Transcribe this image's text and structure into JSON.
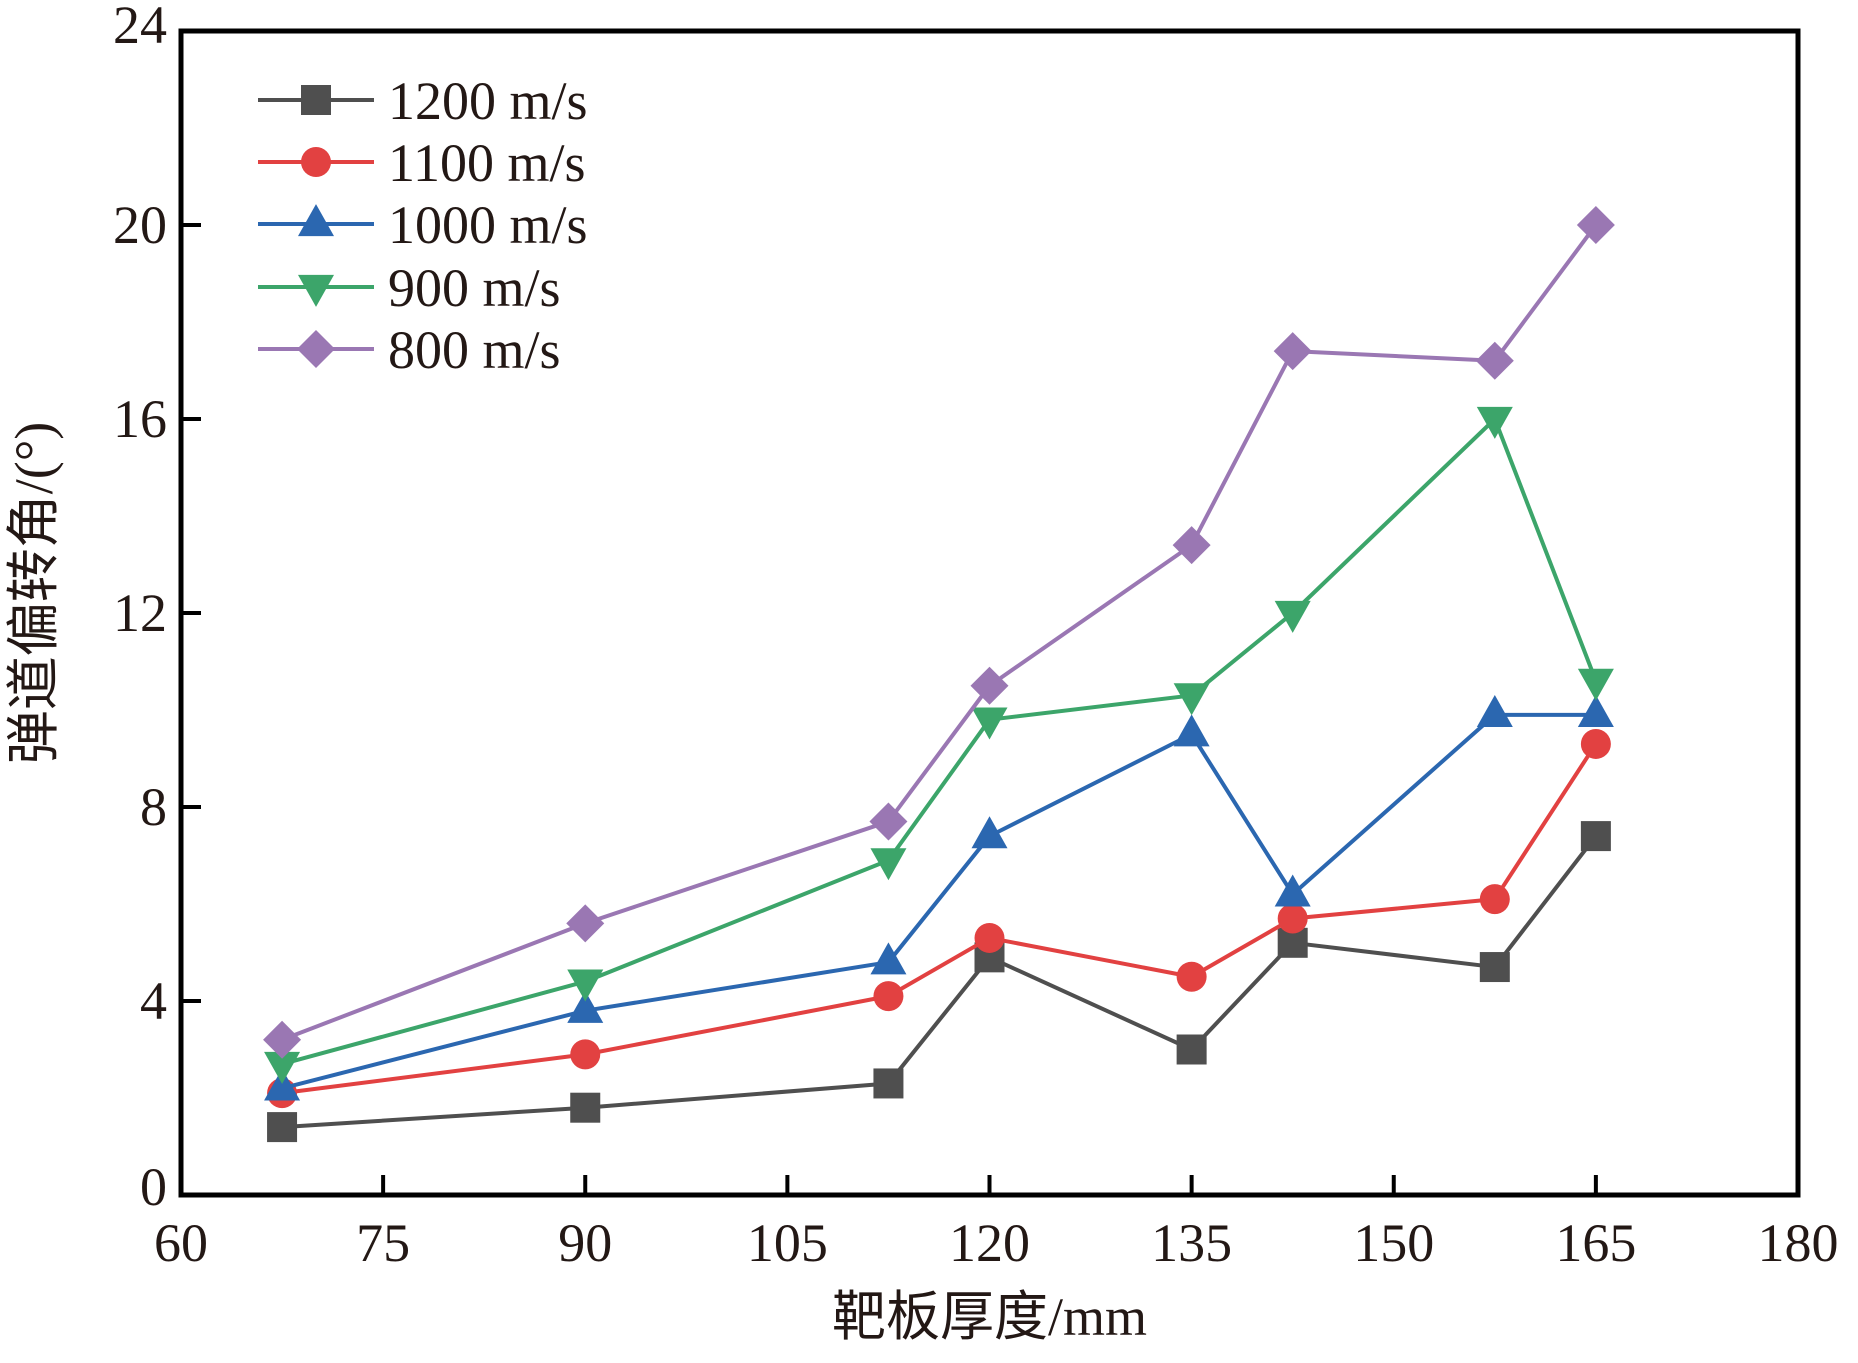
{
  "chart_data": {
    "type": "line",
    "title": "",
    "xlabel": "靶板厚度/mm",
    "ylabel": "弹道偏转角/(°)",
    "xlim": [
      60,
      180
    ],
    "ylim": [
      0,
      24
    ],
    "xticks": [
      60,
      75,
      90,
      105,
      120,
      135,
      150,
      165,
      180
    ],
    "yticks": [
      0,
      4,
      8,
      12,
      16,
      20,
      24
    ],
    "xtick_labels": [
      "60",
      "75",
      "90",
      "105",
      "120",
      "135",
      "150",
      "165",
      "180"
    ],
    "ytick_labels": [
      "0",
      "4",
      "8",
      "12",
      "16",
      "20",
      "24"
    ],
    "grid": false,
    "legend_position": "top-left",
    "x": [
      67.5,
      90,
      112.5,
      120,
      135,
      142.5,
      157.5,
      165
    ],
    "series": [
      {
        "name": "1200 m/s",
        "marker": "square",
        "color": "#4f4f4f",
        "values": [
          1.4,
          1.8,
          2.3,
          4.9,
          3.0,
          5.2,
          4.7,
          7.4
        ]
      },
      {
        "name": "1100 m/s",
        "marker": "circle",
        "color": "#e24141",
        "values": [
          2.1,
          2.9,
          4.1,
          5.3,
          4.5,
          5.7,
          6.1,
          9.3
        ]
      },
      {
        "name": "1000 m/s",
        "marker": "triangle-up",
        "color": "#2b67b0",
        "values": [
          2.2,
          3.8,
          4.8,
          7.4,
          9.5,
          6.2,
          9.9,
          9.9
        ]
      },
      {
        "name": "900 m/s",
        "marker": "triangle-down",
        "color": "#3ca56a",
        "values": [
          2.7,
          4.4,
          6.9,
          9.8,
          10.3,
          12.0,
          16.0,
          10.6
        ]
      },
      {
        "name": "800 m/s",
        "marker": "diamond",
        "color": "#9a77b3",
        "values": [
          3.2,
          5.6,
          7.7,
          10.5,
          13.4,
          17.4,
          17.2,
          20.0
        ]
      }
    ]
  }
}
